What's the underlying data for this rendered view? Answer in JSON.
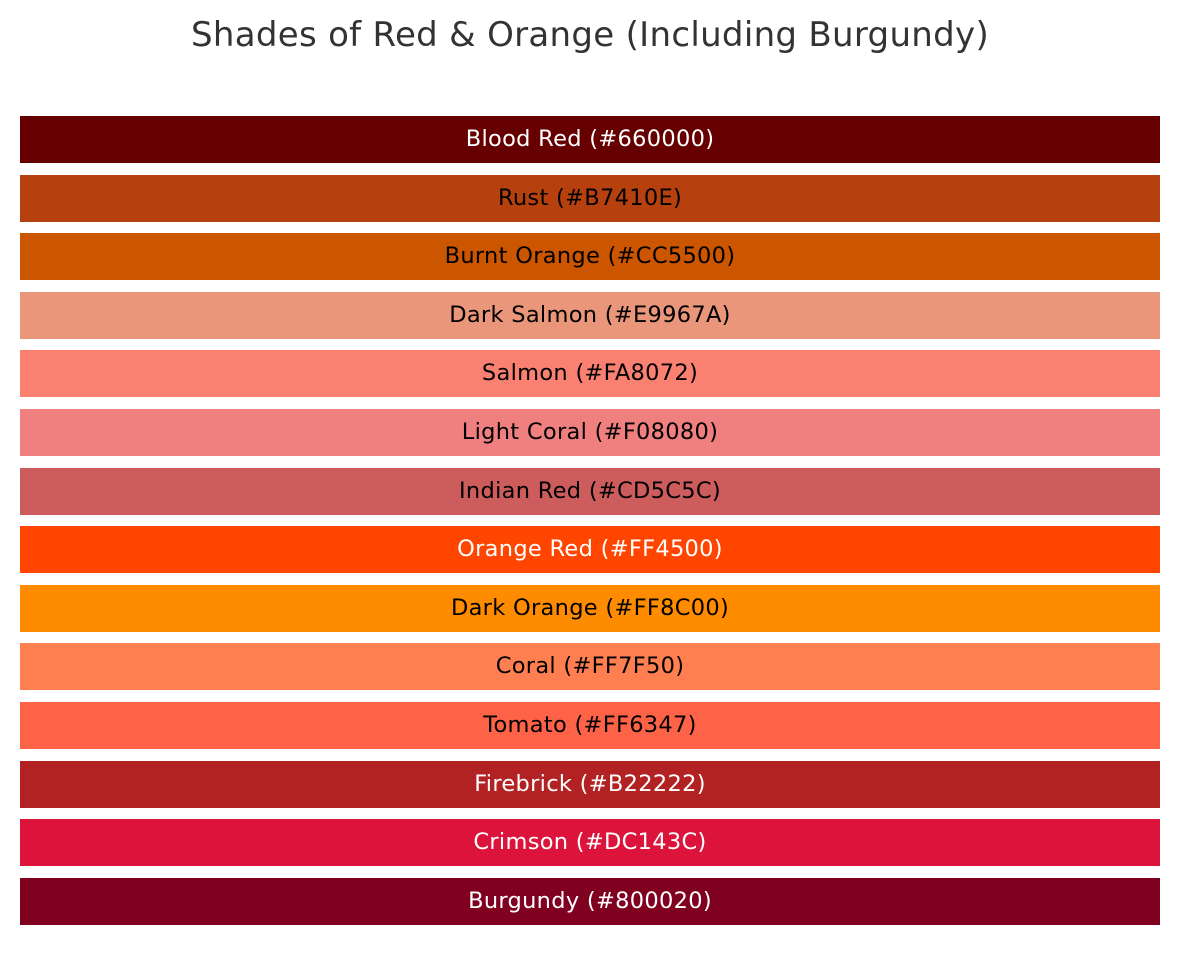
{
  "title": "Shades of Red & Orange (Including Burgundy)",
  "swatches": [
    {
      "label": "Blood Red (#660000)",
      "color": "#660000",
      "text_color": "#ffffff"
    },
    {
      "label": "Rust (#B7410E)",
      "color": "#B7410E",
      "text_color": "#000000"
    },
    {
      "label": "Burnt Orange (#CC5500)",
      "color": "#CC5500",
      "text_color": "#000000"
    },
    {
      "label": "Dark Salmon (#E9967A)",
      "color": "#E9967A",
      "text_color": "#000000"
    },
    {
      "label": "Salmon (#FA8072)",
      "color": "#FA8072",
      "text_color": "#000000"
    },
    {
      "label": "Light Coral (#F08080)",
      "color": "#F08080",
      "text_color": "#000000"
    },
    {
      "label": "Indian Red (#CD5C5C)",
      "color": "#CD5C5C",
      "text_color": "#000000"
    },
    {
      "label": "Orange Red (#FF4500)",
      "color": "#FF4500",
      "text_color": "#ffffff"
    },
    {
      "label": "Dark Orange (#FF8C00)",
      "color": "#FF8C00",
      "text_color": "#000000"
    },
    {
      "label": "Coral (#FF7F50)",
      "color": "#FF7F50",
      "text_color": "#000000"
    },
    {
      "label": "Tomato (#FF6347)",
      "color": "#FF6347",
      "text_color": "#000000"
    },
    {
      "label": "Firebrick (#B22222)",
      "color": "#B22222",
      "text_color": "#ffffff"
    },
    {
      "label": "Crimson (#DC143C)",
      "color": "#DC143C",
      "text_color": "#ffffff"
    },
    {
      "label": "Burgundy (#800020)",
      "color": "#800020",
      "text_color": "#ffffff"
    }
  ]
}
